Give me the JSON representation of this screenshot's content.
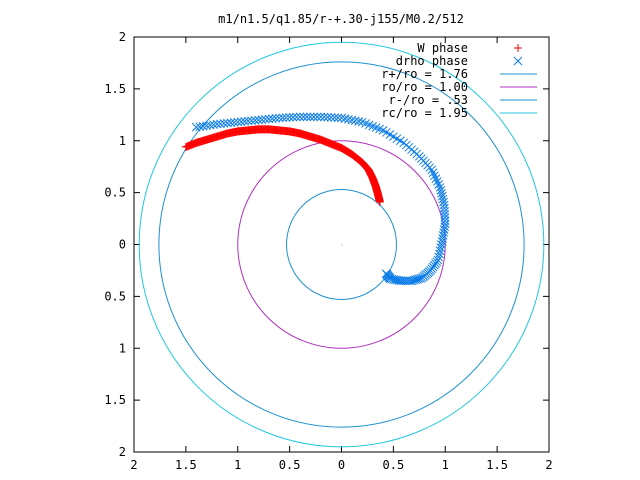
{
  "chart_data": {
    "type": "scatter",
    "title": "m1/n1.5/q1.85/r-+.30-j155/M0.2/512",
    "xlabel": "",
    "ylabel": "",
    "xlim": [
      -2,
      2
    ],
    "ylim": [
      -2,
      2
    ],
    "x_ticks": [
      -2,
      -1.5,
      -1,
      -0.5,
      0,
      0.5,
      1,
      1.5,
      2
    ],
    "y_ticks": [
      -2,
      -1.5,
      -1,
      -0.5,
      0,
      0.5,
      1,
      1.5,
      2
    ],
    "x_tick_labels": [
      "2",
      "1.5",
      "1",
      "0.5",
      "0",
      "0.5",
      "1",
      "1.5",
      "2"
    ],
    "y_tick_labels": [
      "2",
      "1.5",
      "1",
      "0.5",
      "0",
      "0.5",
      "1",
      "1.5",
      "2"
    ],
    "grid": false,
    "legend_position": "top-right",
    "series": [
      {
        "name": "W phase",
        "marker": "plus",
        "color": "#ff0000",
        "x": [
          -1.5,
          -1.4,
          -1.3,
          -1.2,
          -1.1,
          -1.0,
          -0.9,
          -0.8,
          -0.7,
          -0.6,
          -0.5,
          -0.4,
          -0.3,
          -0.2,
          -0.1,
          0.0,
          0.1,
          0.2,
          0.26,
          0.3,
          0.33,
          0.35,
          0.37
        ],
        "y": [
          0.94,
          0.98,
          1.01,
          1.04,
          1.07,
          1.09,
          1.1,
          1.11,
          1.11,
          1.1,
          1.09,
          1.07,
          1.04,
          1.01,
          0.97,
          0.93,
          0.87,
          0.79,
          0.72,
          0.64,
          0.56,
          0.49,
          0.41
        ]
      },
      {
        "name": "drho phase",
        "marker": "x",
        "color": "#0a7ce8",
        "x": [
          -1.4,
          -1.2,
          -1.0,
          -0.8,
          -0.6,
          -0.4,
          -0.2,
          0.0,
          0.2,
          0.4,
          0.6,
          0.75,
          0.87,
          0.95,
          0.99,
          1.0,
          0.97,
          0.93,
          0.86,
          0.78,
          0.68,
          0.57,
          0.47,
          0.43
        ],
        "y": [
          1.13,
          1.16,
          1.18,
          1.2,
          1.22,
          1.23,
          1.23,
          1.22,
          1.18,
          1.1,
          0.98,
          0.85,
          0.72,
          0.55,
          0.38,
          0.2,
          0.03,
          -0.15,
          -0.25,
          -0.32,
          -0.35,
          -0.35,
          -0.33,
          -0.28
        ]
      }
    ],
    "circles": [
      {
        "name": "r+/ro = 1.76",
        "radius": 1.76,
        "color": "#1e90d0"
      },
      {
        "name": "ro/ro = 1.00",
        "radius": 1.0,
        "color": "#b030c0"
      },
      {
        "name": "r-/ro = .53",
        "radius": 0.53,
        "color": "#1e90d0"
      },
      {
        "name": "rc/ro = 1.95",
        "radius": 1.95,
        "color": "#20c8e0"
      }
    ]
  }
}
